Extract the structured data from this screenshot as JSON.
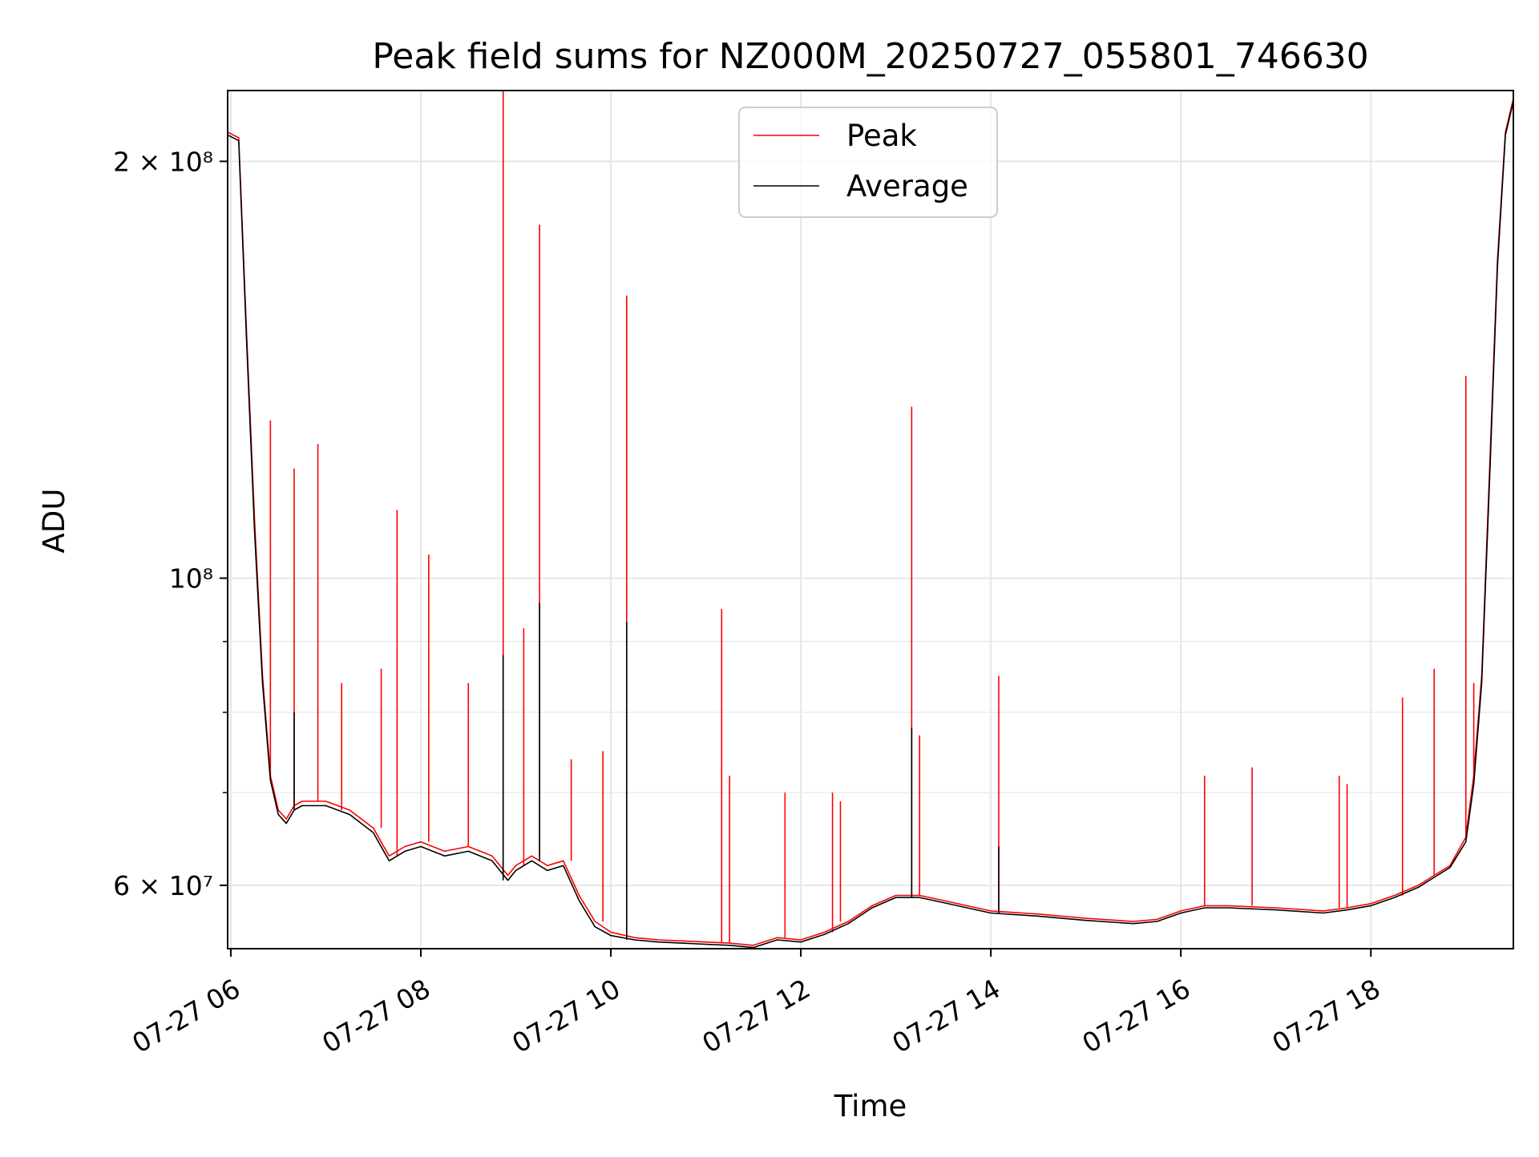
{
  "chart_data": {
    "type": "line",
    "title": "Peak field sums for NZ000M_20250727_055801_746630",
    "xlabel": "Time",
    "ylabel": "ADU",
    "yscale": "log",
    "xlim": [
      "2025-07-27 05:58",
      "2025-07-27 19:30"
    ],
    "ylim": [
      54000000,
      225000000
    ],
    "grid": true,
    "legend": "upper center",
    "x_ticks": [
      {
        "time": "2025-07-27 06:00",
        "label": "07-27 06"
      },
      {
        "time": "2025-07-27 08:00",
        "label": "07-27 08"
      },
      {
        "time": "2025-07-27 10:00",
        "label": "07-27 10"
      },
      {
        "time": "2025-07-27 12:00",
        "label": "07-27 12"
      },
      {
        "time": "2025-07-27 14:00",
        "label": "07-27 14"
      },
      {
        "time": "2025-07-27 16:00",
        "label": "07-27 16"
      },
      {
        "time": "2025-07-27 18:00",
        "label": "07-27 18"
      }
    ],
    "y_ticks": [
      {
        "value": 200000000,
        "label": "2 × 10⁸"
      },
      {
        "value": 100000000,
        "label": "10⁸"
      },
      {
        "value": 60000000,
        "label": "6 × 10⁷"
      }
    ],
    "y_minor_ticks": [
      70000000,
      80000000,
      90000000
    ],
    "series": [
      {
        "name": "Peak",
        "color": "#ff0000",
        "x": [
          "2025-07-27 05:58",
          "2025-07-27 06:05",
          "2025-07-27 06:10",
          "2025-07-27 06:15",
          "2025-07-27 06:20",
          "2025-07-27 06:25",
          "2025-07-27 06:30",
          "2025-07-27 06:35",
          "2025-07-27 06:40",
          "2025-07-27 06:45",
          "2025-07-27 06:50",
          "2025-07-27 07:00",
          "2025-07-27 07:15",
          "2025-07-27 07:30",
          "2025-07-27 07:40",
          "2025-07-27 07:50",
          "2025-07-27 08:00",
          "2025-07-27 08:15",
          "2025-07-27 08:30",
          "2025-07-27 08:45",
          "2025-07-27 08:55",
          "2025-07-27 09:00",
          "2025-07-27 09:10",
          "2025-07-27 09:20",
          "2025-07-27 09:30",
          "2025-07-27 09:40",
          "2025-07-27 09:50",
          "2025-07-27 10:00",
          "2025-07-27 10:15",
          "2025-07-27 10:30",
          "2025-07-27 10:45",
          "2025-07-27 11:00",
          "2025-07-27 11:15",
          "2025-07-27 11:30",
          "2025-07-27 11:45",
          "2025-07-27 12:00",
          "2025-07-27 12:15",
          "2025-07-27 12:30",
          "2025-07-27 12:45",
          "2025-07-27 13:00",
          "2025-07-27 13:15",
          "2025-07-27 13:30",
          "2025-07-27 13:45",
          "2025-07-27 14:00",
          "2025-07-27 14:30",
          "2025-07-27 15:00",
          "2025-07-27 15:30",
          "2025-07-27 15:45",
          "2025-07-27 16:00",
          "2025-07-27 16:15",
          "2025-07-27 16:30",
          "2025-07-27 17:00",
          "2025-07-27 17:30",
          "2025-07-27 17:45",
          "2025-07-27 18:00",
          "2025-07-27 18:15",
          "2025-07-27 18:30",
          "2025-07-27 18:40",
          "2025-07-27 18:50",
          "2025-07-27 19:00",
          "2025-07-27 19:05",
          "2025-07-27 19:10",
          "2025-07-27 19:15",
          "2025-07-27 19:20",
          "2025-07-27 19:25",
          "2025-07-27 19:30"
        ],
        "y": [
          210000000,
          208000000,
          150000000,
          110000000,
          85000000,
          72000000,
          68000000,
          67000000,
          68500000,
          69000000,
          69000000,
          69000000,
          68000000,
          66000000,
          63000000,
          64000000,
          64500000,
          63500000,
          64000000,
          63000000,
          61000000,
          62000000,
          63000000,
          62000000,
          62500000,
          59000000,
          56500000,
          55500000,
          55000000,
          54800000,
          54700000,
          54600000,
          54500000,
          54300000,
          55000000,
          54800000,
          55500000,
          56500000,
          58000000,
          59000000,
          59000000,
          58500000,
          58000000,
          57500000,
          57200000,
          56800000,
          56500000,
          56700000,
          57500000,
          58000000,
          58000000,
          57800000,
          57500000,
          57800000,
          58200000,
          59000000,
          60000000,
          61000000,
          62000000,
          65000000,
          72000000,
          85000000,
          120000000,
          170000000,
          210000000,
          222000000
        ],
        "spikes": [
          {
            "x": "2025-07-27 06:25",
            "y": 130000000
          },
          {
            "x": "2025-07-27 06:40",
            "y": 120000000
          },
          {
            "x": "2025-07-27 06:55",
            "y": 125000000
          },
          {
            "x": "2025-07-27 07:10",
            "y": 84000000
          },
          {
            "x": "2025-07-27 07:35",
            "y": 86000000
          },
          {
            "x": "2025-07-27 07:45",
            "y": 112000000
          },
          {
            "x": "2025-07-27 08:05",
            "y": 104000000
          },
          {
            "x": "2025-07-27 08:30",
            "y": 84000000
          },
          {
            "x": "2025-07-27 08:52",
            "y": 225000000
          },
          {
            "x": "2025-07-27 09:05",
            "y": 92000000
          },
          {
            "x": "2025-07-27 09:15",
            "y": 180000000
          },
          {
            "x": "2025-07-27 09:35",
            "y": 74000000
          },
          {
            "x": "2025-07-27 09:55",
            "y": 75000000
          },
          {
            "x": "2025-07-27 10:10",
            "y": 160000000
          },
          {
            "x": "2025-07-27 11:10",
            "y": 95000000
          },
          {
            "x": "2025-07-27 11:15",
            "y": 72000000
          },
          {
            "x": "2025-07-27 11:50",
            "y": 70000000
          },
          {
            "x": "2025-07-27 12:20",
            "y": 70000000
          },
          {
            "x": "2025-07-27 12:25",
            "y": 69000000
          },
          {
            "x": "2025-07-27 13:10",
            "y": 133000000
          },
          {
            "x": "2025-07-27 13:15",
            "y": 77000000
          },
          {
            "x": "2025-07-27 14:05",
            "y": 85000000
          },
          {
            "x": "2025-07-27 16:15",
            "y": 72000000
          },
          {
            "x": "2025-07-27 16:45",
            "y": 73000000
          },
          {
            "x": "2025-07-27 17:40",
            "y": 72000000
          },
          {
            "x": "2025-07-27 17:45",
            "y": 71000000
          },
          {
            "x": "2025-07-27 18:20",
            "y": 82000000
          },
          {
            "x": "2025-07-27 18:40",
            "y": 86000000
          },
          {
            "x": "2025-07-27 19:00",
            "y": 140000000
          },
          {
            "x": "2025-07-27 19:05",
            "y": 84000000
          }
        ]
      },
      {
        "name": "Average",
        "color": "#000000",
        "x": [
          "2025-07-27 05:58",
          "2025-07-27 06:05",
          "2025-07-27 06:10",
          "2025-07-27 06:15",
          "2025-07-27 06:20",
          "2025-07-27 06:25",
          "2025-07-27 06:30",
          "2025-07-27 06:35",
          "2025-07-27 06:40",
          "2025-07-27 06:45",
          "2025-07-27 06:50",
          "2025-07-27 07:00",
          "2025-07-27 07:15",
          "2025-07-27 07:30",
          "2025-07-27 07:40",
          "2025-07-27 07:50",
          "2025-07-27 08:00",
          "2025-07-27 08:15",
          "2025-07-27 08:30",
          "2025-07-27 08:45",
          "2025-07-27 08:55",
          "2025-07-27 09:00",
          "2025-07-27 09:10",
          "2025-07-27 09:20",
          "2025-07-27 09:30",
          "2025-07-27 09:40",
          "2025-07-27 09:50",
          "2025-07-27 10:00",
          "2025-07-27 10:15",
          "2025-07-27 10:30",
          "2025-07-27 10:45",
          "2025-07-27 11:00",
          "2025-07-27 11:15",
          "2025-07-27 11:30",
          "2025-07-27 11:45",
          "2025-07-27 12:00",
          "2025-07-27 12:15",
          "2025-07-27 12:30",
          "2025-07-27 12:45",
          "2025-07-27 13:00",
          "2025-07-27 13:15",
          "2025-07-27 13:30",
          "2025-07-27 13:45",
          "2025-07-27 14:00",
          "2025-07-27 14:30",
          "2025-07-27 15:00",
          "2025-07-27 15:30",
          "2025-07-27 15:45",
          "2025-07-27 16:00",
          "2025-07-27 16:15",
          "2025-07-27 16:30",
          "2025-07-27 17:00",
          "2025-07-27 17:30",
          "2025-07-27 17:45",
          "2025-07-27 18:00",
          "2025-07-27 18:15",
          "2025-07-27 18:30",
          "2025-07-27 18:40",
          "2025-07-27 18:50",
          "2025-07-27 19:00",
          "2025-07-27 19:05",
          "2025-07-27 19:10",
          "2025-07-27 19:15",
          "2025-07-27 19:20",
          "2025-07-27 19:25",
          "2025-07-27 19:30"
        ],
        "y": [
          209000000,
          207000000,
          148000000,
          108000000,
          84000000,
          71500000,
          67500000,
          66500000,
          68000000,
          68500000,
          68500000,
          68500000,
          67500000,
          65500000,
          62500000,
          63500000,
          64000000,
          63000000,
          63500000,
          62500000,
          60500000,
          61500000,
          62500000,
          61500000,
          62000000,
          58500000,
          56000000,
          55200000,
          54800000,
          54600000,
          54500000,
          54400000,
          54300000,
          54100000,
          54800000,
          54600000,
          55300000,
          56300000,
          57800000,
          58800000,
          58800000,
          58300000,
          57800000,
          57300000,
          57000000,
          56600000,
          56300000,
          56500000,
          57300000,
          57800000,
          57800000,
          57600000,
          57300000,
          57600000,
          58000000,
          58800000,
          59800000,
          60800000,
          61800000,
          64500000,
          71000000,
          84000000,
          118000000,
          168000000,
          209000000,
          221000000
        ],
        "spikes": [
          {
            "x": "2025-07-27 06:40",
            "y": 80000000
          },
          {
            "x": "2025-07-27 08:52",
            "y": 88000000
          },
          {
            "x": "2025-07-27 09:15",
            "y": 96000000
          },
          {
            "x": "2025-07-27 10:10",
            "y": 93000000
          },
          {
            "x": "2025-07-27 13:10",
            "y": 78000000
          },
          {
            "x": "2025-07-27 14:05",
            "y": 64000000
          }
        ]
      }
    ]
  }
}
